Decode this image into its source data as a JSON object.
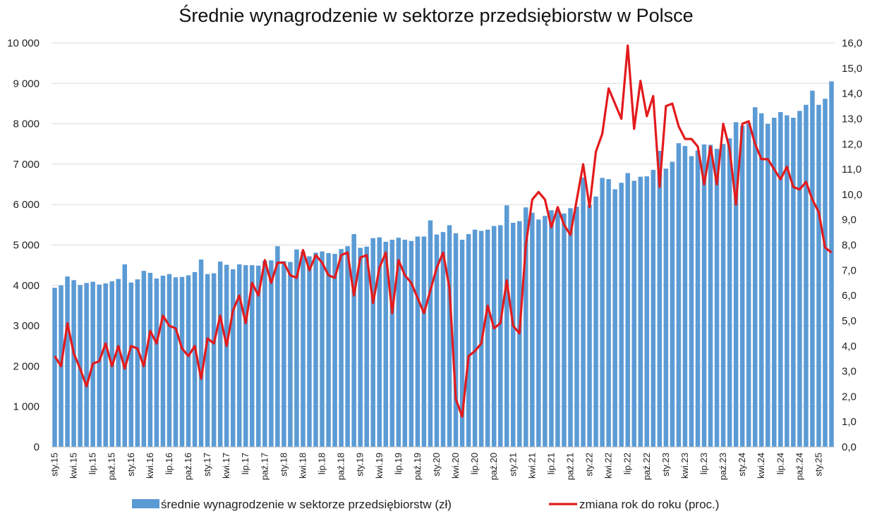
{
  "chart_data": {
    "type": "bar+line",
    "title": "Średnie wynagrodzenie w sektorze przedsiębiorstw w Polsce",
    "grid": true,
    "legend_position": "bottom",
    "colors": {
      "bars": "#5b9bd5",
      "line": "#e31a1c",
      "grid": "#d9d9d9"
    },
    "left_axis": {
      "range": [
        0,
        10000
      ],
      "ticks": [
        0,
        1000,
        2000,
        3000,
        4000,
        5000,
        6000,
        7000,
        8000,
        9000,
        10000
      ],
      "tick_labels": [
        "0",
        "1 000",
        "2 000",
        "3 000",
        "4 000",
        "5 000",
        "6 000",
        "7 000",
        "8 000",
        "9 000",
        "10 000"
      ]
    },
    "right_axis": {
      "range": [
        0,
        16
      ],
      "ticks": [
        0,
        1,
        2,
        3,
        4,
        5,
        6,
        7,
        8,
        9,
        10,
        11,
        12,
        13,
        14,
        15,
        16
      ],
      "tick_labels": [
        "0,0",
        "1,0",
        "2,0",
        "3,0",
        "4,0",
        "5,0",
        "6,0",
        "7,0",
        "8,0",
        "9,0",
        "10,0",
        "11,0",
        "12,0",
        "13,0",
        "14,0",
        "15,0",
        "16,0"
      ]
    },
    "x_tick_labels": [
      {
        "index": 0,
        "label": "sty.15"
      },
      {
        "index": 3,
        "label": "kwi.15"
      },
      {
        "index": 6,
        "label": "lip.15"
      },
      {
        "index": 9,
        "label": "paź.15"
      },
      {
        "index": 12,
        "label": "sty.16"
      },
      {
        "index": 15,
        "label": "kwi.16"
      },
      {
        "index": 18,
        "label": "lip.16"
      },
      {
        "index": 21,
        "label": "paź.16"
      },
      {
        "index": 24,
        "label": "sty.17"
      },
      {
        "index": 27,
        "label": "kwi.17"
      },
      {
        "index": 30,
        "label": "lip.17"
      },
      {
        "index": 33,
        "label": "paź.17"
      },
      {
        "index": 36,
        "label": "sty.18"
      },
      {
        "index": 39,
        "label": "kwi.18"
      },
      {
        "index": 42,
        "label": "lip.18"
      },
      {
        "index": 45,
        "label": "paź.18"
      },
      {
        "index": 48,
        "label": "sty.19"
      },
      {
        "index": 51,
        "label": "kwi.19"
      },
      {
        "index": 54,
        "label": "lip.19"
      },
      {
        "index": 57,
        "label": "paź.19"
      },
      {
        "index": 60,
        "label": "sty.20"
      },
      {
        "index": 63,
        "label": "kwi.20"
      },
      {
        "index": 66,
        "label": "lip.20"
      },
      {
        "index": 69,
        "label": "paź.20"
      },
      {
        "index": 72,
        "label": "sty.21"
      },
      {
        "index": 75,
        "label": "kwi.21"
      },
      {
        "index": 78,
        "label": "lip.21"
      },
      {
        "index": 81,
        "label": "paź.21"
      },
      {
        "index": 84,
        "label": "sty.22"
      },
      {
        "index": 87,
        "label": "kwi.22"
      },
      {
        "index": 90,
        "label": "lip.22"
      },
      {
        "index": 93,
        "label": "paź.22"
      },
      {
        "index": 96,
        "label": "sty.23"
      },
      {
        "index": 99,
        "label": "kwi.23"
      },
      {
        "index": 102,
        "label": "lip.23"
      },
      {
        "index": 105,
        "label": "paź.23"
      },
      {
        "index": 108,
        "label": "sty.24"
      },
      {
        "index": 111,
        "label": "kwi.24"
      },
      {
        "index": 114,
        "label": "lip.24"
      },
      {
        "index": 117,
        "label": "paź.24"
      },
      {
        "index": 120,
        "label": "sty.25"
      }
    ],
    "series": [
      {
        "name": "średnie wynagrodzenie w sektorze przedsiębiorstw (zł)",
        "type": "bar",
        "axis": "left",
        "values": [
          3940,
          4000,
          4220,
          4130,
          4010,
          4060,
          4090,
          4020,
          4050,
          4100,
          4160,
          4520,
          4070,
          4150,
          4360,
          4310,
          4170,
          4240,
          4280,
          4200,
          4210,
          4250,
          4330,
          4640,
          4280,
          4300,
          4590,
          4510,
          4400,
          4520,
          4500,
          4500,
          4490,
          4610,
          4620,
          4970,
          4600,
          4580,
          4890,
          4840,
          4720,
          4810,
          4840,
          4800,
          4780,
          4900,
          4970,
          5270,
          4930,
          4960,
          5170,
          5190,
          5080,
          5130,
          5180,
          5130,
          5100,
          5210,
          5210,
          5610,
          5260,
          5320,
          5490,
          5290,
          5130,
          5270,
          5380,
          5350,
          5380,
          5470,
          5490,
          5980,
          5550,
          5590,
          5930,
          5800,
          5630,
          5720,
          5860,
          5850,
          5780,
          5910,
          5950,
          6670,
          5990,
          6200,
          6660,
          6630,
          6380,
          6540,
          6780,
          6590,
          6690,
          6700,
          6860,
          7330,
          6890,
          7060,
          7520,
          7450,
          7200,
          7340,
          7490,
          7480,
          7380,
          7500,
          7640,
          8040,
          7950,
          8010,
          8410,
          8260,
          8000,
          8150,
          8290,
          8210,
          8150,
          8320,
          8470,
          8820,
          8470,
          8620,
          9050
        ]
      },
      {
        "name": "zmiana rok do roku (proc.)",
        "type": "line",
        "axis": "right",
        "values": [
          3.6,
          3.2,
          4.9,
          3.7,
          3.1,
          2.4,
          3.3,
          3.4,
          4.1,
          3.2,
          4.0,
          3.1,
          4.0,
          3.9,
          3.2,
          4.6,
          4.1,
          5.2,
          4.8,
          4.7,
          3.9,
          3.6,
          4.0,
          2.7,
          4.3,
          4.1,
          5.2,
          4.0,
          5.4,
          6.0,
          4.9,
          6.5,
          6.0,
          7.4,
          6.5,
          7.3,
          7.3,
          6.8,
          6.7,
          7.8,
          7.0,
          7.6,
          7.3,
          6.8,
          6.7,
          7.6,
          7.7,
          6.0,
          7.5,
          7.6,
          5.7,
          7.1,
          7.7,
          5.3,
          7.4,
          6.8,
          6.5,
          5.9,
          5.3,
          6.2,
          7.1,
          7.7,
          6.3,
          1.9,
          1.2,
          3.6,
          3.8,
          4.1,
          5.6,
          4.7,
          4.9,
          6.6,
          4.8,
          4.5,
          8.0,
          9.8,
          10.1,
          9.8,
          8.7,
          9.5,
          8.8,
          8.4,
          9.8,
          11.2,
          9.5,
          11.7,
          12.4,
          14.2,
          13.6,
          13.0,
          15.9,
          12.6,
          14.5,
          13.1,
          13.9,
          10.3,
          13.5,
          13.6,
          12.7,
          12.2,
          12.2,
          11.9,
          10.4,
          11.9,
          10.4,
          12.8,
          11.8,
          9.6,
          12.8,
          12.9,
          12.0,
          11.4,
          11.4,
          11.0,
          10.6,
          11.1,
          10.3,
          10.2,
          10.5,
          9.8,
          9.3,
          7.9,
          7.7
        ]
      }
    ]
  }
}
